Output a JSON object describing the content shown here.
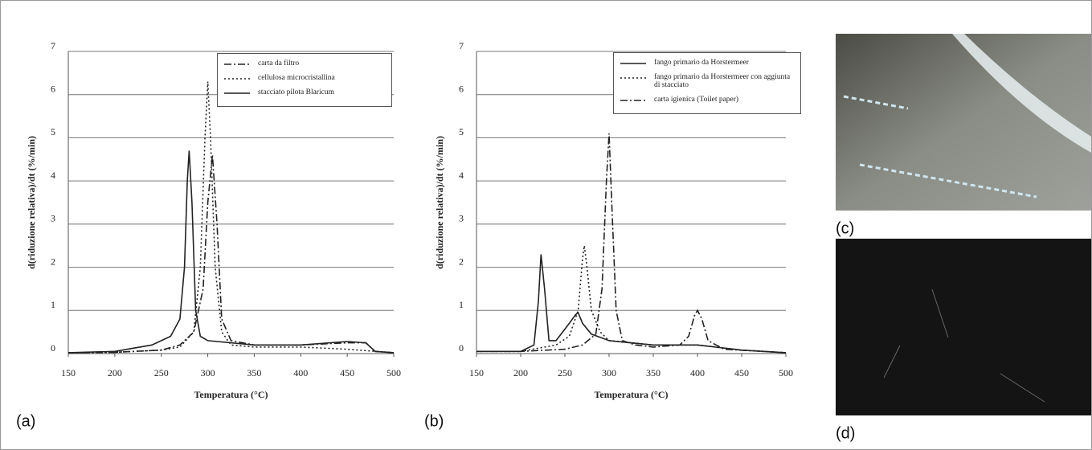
{
  "chart_data": [
    {
      "type": "line",
      "panel_label": "(a)",
      "xlabel": "Temperatura (°C)",
      "ylabel": "d(riduzione relativa)/dt (%/min)",
      "xlim": [
        150,
        500
      ],
      "xticks": [
        150,
        200,
        250,
        300,
        350,
        400,
        450,
        500
      ],
      "ylim": [
        0,
        7
      ],
      "yticks": [
        0,
        1,
        2,
        3,
        4,
        5,
        6,
        7
      ],
      "grid": true,
      "legend": "upper right",
      "series": [
        {
          "name": "carta da filtro",
          "color": "#222222",
          "dash": "dashdot",
          "x": [
            150,
            200,
            250,
            270,
            285,
            295,
            300,
            305,
            310,
            315,
            325,
            350,
            400,
            450,
            470,
            480,
            500
          ],
          "values": [
            0.02,
            0.03,
            0.08,
            0.2,
            0.5,
            1.5,
            3.5,
            4.6,
            3.0,
            0.8,
            0.3,
            0.2,
            0.2,
            0.25,
            0.25,
            0.05,
            0.02
          ]
        },
        {
          "name": "cellulosa microcristallina",
          "color": "#222222",
          "dash": "dotted",
          "x": [
            150,
            200,
            250,
            270,
            285,
            292,
            297,
            300,
            303,
            308,
            315,
            325,
            350,
            400,
            450,
            500
          ],
          "values": [
            0.02,
            0.03,
            0.08,
            0.15,
            0.5,
            2,
            5,
            6.3,
            5,
            2,
            0.5,
            0.2,
            0.15,
            0.15,
            0.1,
            0.02
          ]
        },
        {
          "name": "stacciato pilota Blaricum",
          "color": "#222222",
          "dash": "solid",
          "x": [
            150,
            200,
            240,
            260,
            270,
            275,
            278,
            280,
            283,
            287,
            292,
            300,
            350,
            400,
            450,
            470,
            480,
            500
          ],
          "values": [
            0.02,
            0.05,
            0.2,
            0.4,
            0.8,
            2,
            4,
            4.7,
            3.5,
            1.0,
            0.4,
            0.3,
            0.2,
            0.2,
            0.28,
            0.25,
            0.05,
            0.02
          ]
        }
      ]
    },
    {
      "type": "line",
      "panel_label": "(b)",
      "xlabel": "Temperatura (°C)",
      "ylabel": "d(riduzione relativa)/dt (%/min)",
      "xlim": [
        150,
        500
      ],
      "xticks": [
        150,
        200,
        250,
        300,
        350,
        400,
        450,
        500
      ],
      "ylim": [
        0,
        7
      ],
      "yticks": [
        0,
        1,
        2,
        3,
        4,
        5,
        6,
        7
      ],
      "grid": true,
      "legend": "upper right",
      "series": [
        {
          "name": "fango primario da Horstermeer",
          "color": "#222222",
          "dash": "solid",
          "x": [
            150,
            200,
            215,
            220,
            223,
            227,
            232,
            240,
            255,
            262,
            265,
            270,
            280,
            300,
            350,
            400,
            450,
            500
          ],
          "values": [
            0.05,
            0.05,
            0.2,
            1.2,
            2.3,
            1.5,
            0.3,
            0.3,
            0.7,
            0.9,
            0.95,
            0.7,
            0.45,
            0.3,
            0.2,
            0.2,
            0.08,
            0.02
          ]
        },
        {
          "name": "fango primario da Horstermeer con aggiunta di stacciato",
          "color": "#222222",
          "dash": "dotted",
          "x": [
            150,
            200,
            240,
            255,
            265,
            270,
            272,
            275,
            280,
            290,
            300,
            350,
            400,
            450,
            500
          ],
          "values": [
            0.05,
            0.05,
            0.2,
            0.4,
            1.0,
            2.2,
            2.5,
            2.0,
            1.0,
            0.5,
            0.3,
            0.2,
            0.2,
            0.08,
            0.02
          ]
        },
        {
          "name": "carta igienica (Toilet paper)",
          "color": "#222222",
          "dash": "dashdot",
          "x": [
            150,
            200,
            250,
            270,
            285,
            292,
            297,
            300,
            303,
            308,
            315,
            330,
            350,
            380,
            390,
            397,
            400,
            405,
            412,
            430,
            500
          ],
          "values": [
            0.05,
            0.05,
            0.1,
            0.2,
            0.45,
            1.5,
            4,
            5.1,
            3.5,
            1.0,
            0.3,
            0.2,
            0.15,
            0.2,
            0.4,
            0.9,
            1.0,
            0.8,
            0.3,
            0.1,
            0.02
          ]
        }
      ]
    }
  ],
  "images": [
    {
      "label": "(c)"
    },
    {
      "label": "(d)"
    }
  ]
}
